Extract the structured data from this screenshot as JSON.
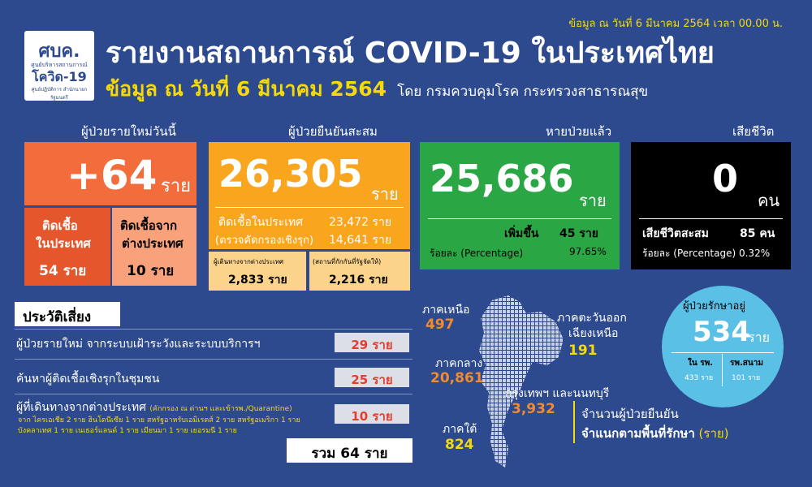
{
  "stamp": "ข้อมูล ณ วันที่ 6 มีนาคม 2564 เวลา 00.00 น.",
  "logo": {
    "l1": "ศบค.",
    "l2": "ศูนย์บริหารสถานการณ์",
    "l3": "โควิด-19",
    "l4": "ศูนย์ปฏิบัติการ สำนักนายกรัฐมนตรี"
  },
  "title": "รายงานสถานการณ์ COVID-19 ในประเทศไทย",
  "subtitle": {
    "date": "ข้อมูล ณ วันที่ 6 มีนาคม 2564",
    "by": "โดย กรมควบคุมโรค กระทรวงสาธารณสุข"
  },
  "new_cases": {
    "header": "ผู้ป่วยรายใหม่วันนี้",
    "value": "+64",
    "unit": "ราย",
    "local_label1": "ติดเชื้อ",
    "local_label2": "ในประเทศ",
    "local_value": "54 ราย",
    "abroad_label1": "ติดเชื้อจาก",
    "abroad_label2": "ต่างประเทศ",
    "abroad_value": "10 ราย"
  },
  "cumulative": {
    "header": "ผู้ป่วยยืนยันสะสม",
    "value": "26,305",
    "unit": "ราย",
    "domestic_label": "ติดเชื้อในประเทศ",
    "domestic_value": "23,472 ราย",
    "active_label": "(ตรวจคัดกรองเชิงรุก)",
    "active_value": "14,641 ราย",
    "travel_label": "ผู้เดินทางจากต่างประเทศ",
    "travel_value": "2,833 ราย",
    "quarantine_label": "(สถานที่กักกันที่รัฐจัดให้)",
    "quarantine_value": "2,216 ราย"
  },
  "recovered": {
    "header": "หายป่วยแล้ว",
    "value": "25,686",
    "unit": "ราย",
    "inc_label": "เพิ่มขึ้น",
    "inc_value": "45 ราย",
    "pct_label": "ร้อยละ (Percentage)",
    "pct_value": "97.65%"
  },
  "deaths": {
    "header": "เสียชีวิต",
    "value": "0",
    "unit": "คน",
    "cum_label": "เสียชีวิตสะสม",
    "cum_value": "85 คน",
    "pct_label": "ร้อยละ (Percentage) 0.32%"
  },
  "risk": {
    "title": "ประวัติเสี่ยง",
    "items": [
      {
        "label": "ผู้ป่วยรายใหม่ จากระบบเฝ้าระวังและระบบบริการฯ",
        "value": "29 ราย"
      },
      {
        "label": "ค้นหาผู้ติดเชื้อเชิงรุกในชุมชน",
        "value": "25 ราย"
      },
      {
        "label": "ผู้ที่เดินทางจากต่างประเทศ",
        "note": "(คักกรอง ณ ด่านฯ และเข้ารพ./Quarantine)",
        "value": "10 ราย"
      }
    ],
    "detail1": "จาก ไครเอเชีย 2 ราย ฮินโดนีเซีย 1 ราย สหรัฐอาหรับเอมิเรตส์ 2 ราย สหรัฐอเมริกา 1 ราย",
    "detail2": "บังคลาเทศ 1 ราย เนเธอร์แลนด์ 1 ราย เมียนมา 1 ราย เยอรมนี 1 ราย",
    "total": "รวม 64 ราย"
  },
  "map": {
    "north_label": "ภาคเหนือ",
    "north_value": "497",
    "northeast_label1": "ภาคตะวันออก",
    "northeast_label2": "เฉียงเหนือ",
    "northeast_value": "191",
    "central_label": "ภาคกลาง",
    "central_value": "20,861",
    "bkk_label": "กรุงเทพฯ และนนทบุรี",
    "bkk_value": "3,932",
    "south_label": "ภาคใต้",
    "south_value": "824",
    "caption1": "จำนวนผู้ป่วยยืนยัน",
    "caption2": "จำแนกตามพื้นที่รักษา",
    "caption_unit": "(ราย)"
  },
  "treating": {
    "title": "ผู้ป่วยรักษาอยู่",
    "value": "534",
    "unit": "ราย",
    "hosp_label": "ใน รพ.",
    "hosp_value": "433 ราย",
    "field_label": "รพ.สนาม",
    "field_value": "101 ราย"
  },
  "colors": {
    "bg": "#2d4a8e",
    "orange": "#f26c3c",
    "gold": "#f9a51e",
    "green": "#2aa645",
    "black": "#000000",
    "blue": "#5bc0e6",
    "yellow": "#f5d90a"
  }
}
